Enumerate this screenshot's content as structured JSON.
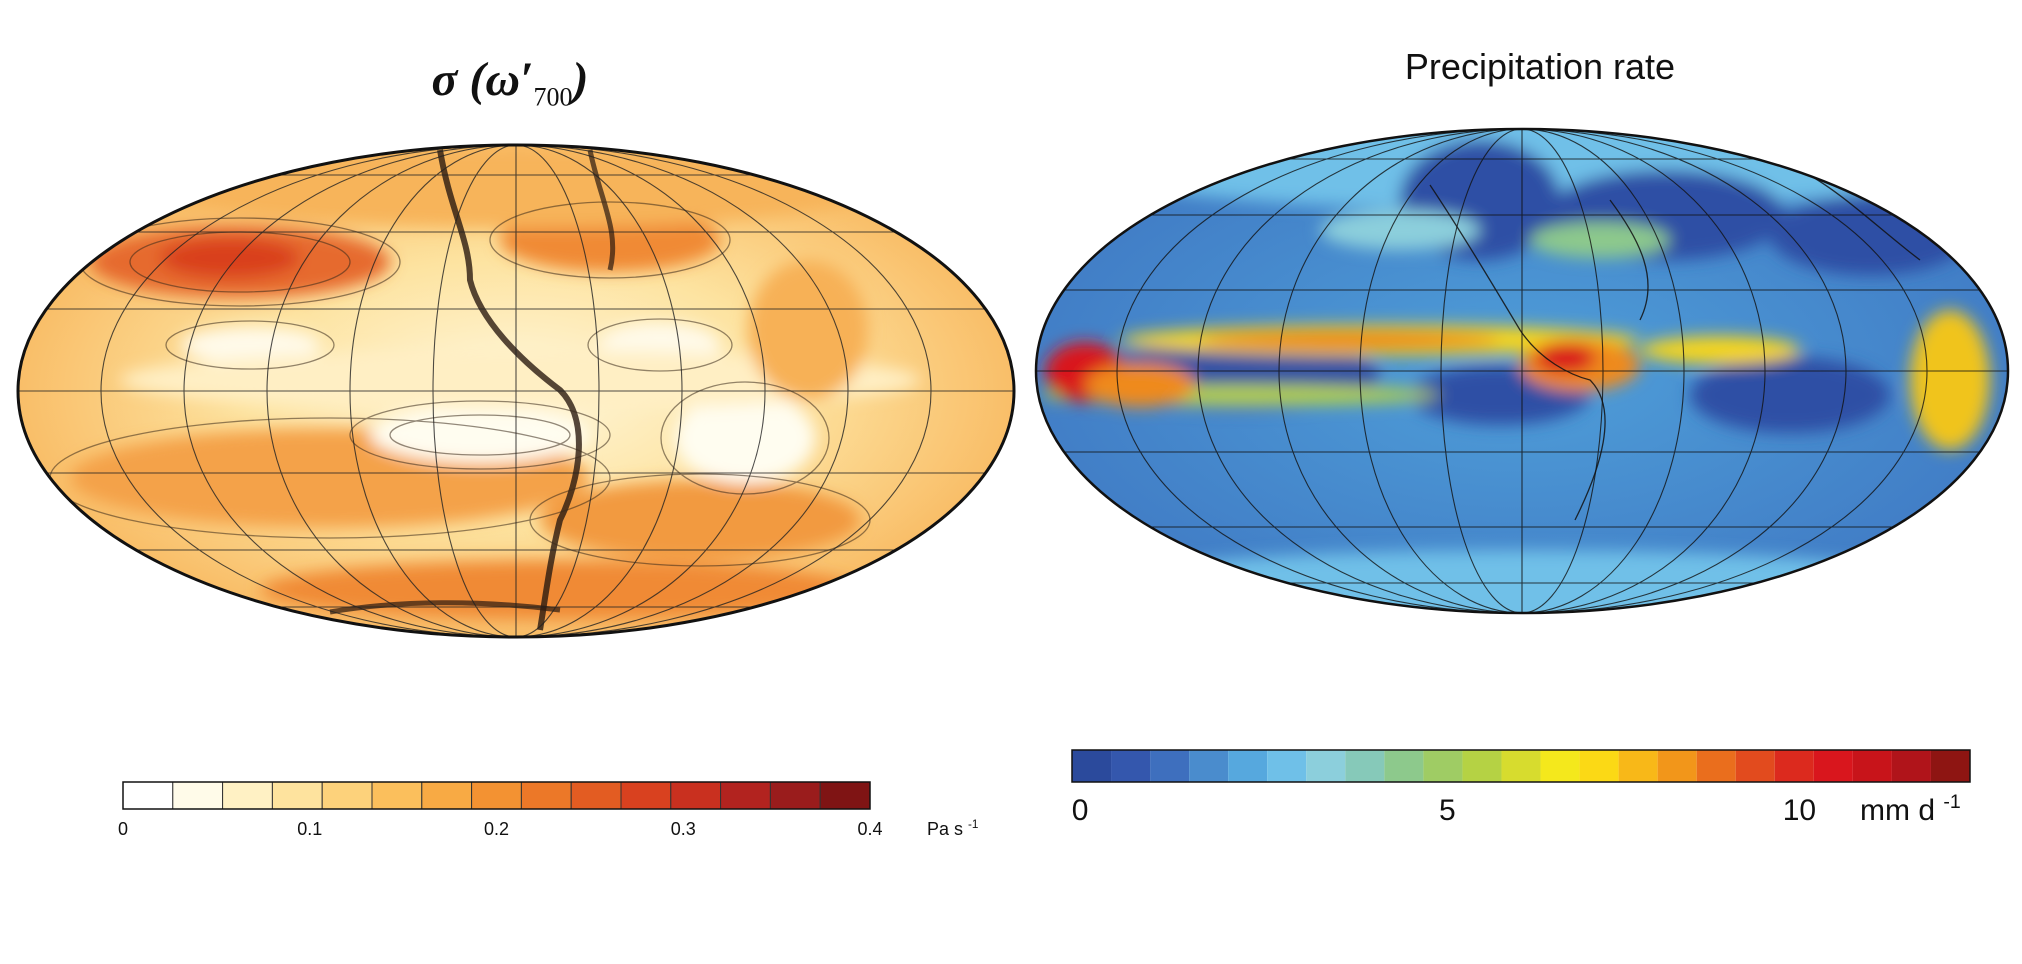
{
  "left_panel": {
    "title_symbol": "σ",
    "title_var": "ω′",
    "title_sub": "700",
    "colorbar": {
      "ticks": [
        "0",
        "0.1",
        "0.2",
        "0.3",
        "0.4"
      ],
      "unit": "Pa s",
      "unit_exp": "-1",
      "colors": [
        "#ffffff",
        "#fffbe9",
        "#fff1c4",
        "#fee39e",
        "#fdd27b",
        "#fbbf5c",
        "#f8aa44",
        "#f39232",
        "#ec7828",
        "#e35c22",
        "#d9411f",
        "#c9301f",
        "#b2231f",
        "#9a1c1c",
        "#7f1414"
      ]
    }
  },
  "right_panel": {
    "title": "Precipitation rate",
    "colorbar": {
      "ticks": [
        "0",
        "5",
        "10"
      ],
      "unit": "mm d",
      "unit_exp": "-1",
      "colors": [
        "#2b4a9c",
        "#3457ad",
        "#3e6fbe",
        "#4a8ccd",
        "#56a8de",
        "#6fc0e8",
        "#8ccfdc",
        "#86c9b9",
        "#8dc98c",
        "#9fcc64",
        "#b5d244",
        "#d7dc2e",
        "#f4e81c",
        "#fbd915",
        "#f8b818",
        "#f2961a",
        "#ea6e1d",
        "#e24b1e",
        "#dc2a1e",
        "#d9161d",
        "#c8141a",
        "#b0141a",
        "#8e1512"
      ]
    }
  }
}
